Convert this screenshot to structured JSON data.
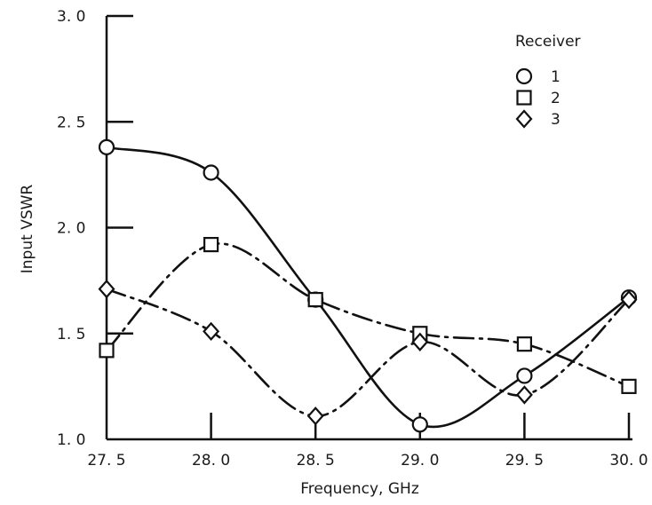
{
  "chart_data": {
    "type": "line",
    "xlabel": "Frequency, GHz",
    "ylabel": "Input VSWR",
    "xlim": [
      27.5,
      30.0
    ],
    "ylim": [
      1.0,
      3.0
    ],
    "x_ticks": [
      "27. 5",
      "28. 0",
      "28. 5",
      "29. 0",
      "29. 5",
      "30. 0"
    ],
    "x_tick_values": [
      27.5,
      28.0,
      28.5,
      29.0,
      29.5,
      30.0
    ],
    "y_ticks": [
      "1. 0",
      "1. 5",
      "2. 0",
      "2. 5",
      "3. 0"
    ],
    "y_tick_values": [
      1.0,
      1.5,
      2.0,
      2.5,
      3.0
    ],
    "grid": false,
    "legend": {
      "title": "Receiver",
      "placement": "top-right"
    },
    "series": [
      {
        "name": "1",
        "marker": "circle",
        "line_style": "solid",
        "x": [
          27.5,
          28.0,
          28.5,
          29.0,
          29.5,
          30.0
        ],
        "values": [
          2.38,
          2.26,
          1.66,
          1.07,
          1.3,
          1.67
        ]
      },
      {
        "name": "2",
        "marker": "square",
        "line_style": "dash-dot",
        "x": [
          27.5,
          28.0,
          28.5,
          29.0,
          29.5,
          30.0
        ],
        "values": [
          1.42,
          1.92,
          1.66,
          1.5,
          1.45,
          1.25
        ]
      },
      {
        "name": "3",
        "marker": "diamond",
        "line_style": "dash-dot",
        "x": [
          27.5,
          28.0,
          28.5,
          29.0,
          29.5,
          30.0
        ],
        "values": [
          1.71,
          1.51,
          1.11,
          1.46,
          1.21,
          1.66
        ]
      }
    ]
  }
}
